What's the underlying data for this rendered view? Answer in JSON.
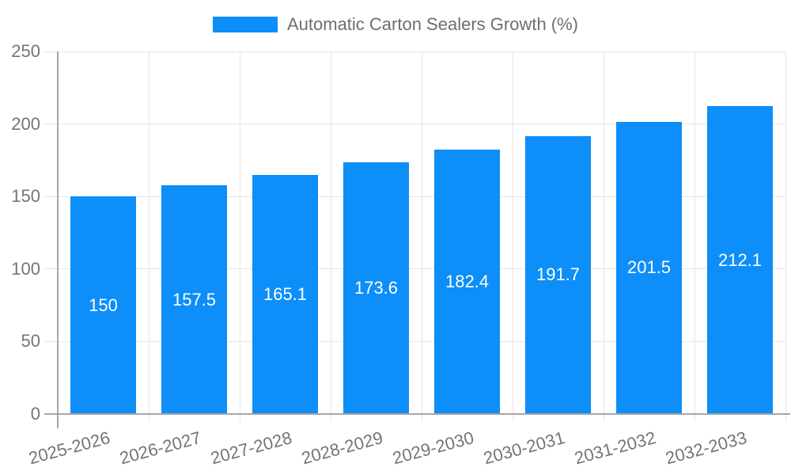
{
  "legend": {
    "label": "Automatic Carton Sealers Growth (%)"
  },
  "chart_data": {
    "type": "bar",
    "title": "Automatic Carton Sealers Growth (%)",
    "categories": [
      "2025-2026",
      "2026-2027",
      "2027-2028",
      "2028-2029",
      "2029-2030",
      "2030-2031",
      "2031-2032",
      "2032-2033"
    ],
    "values": [
      150,
      157.5,
      165.1,
      173.6,
      182.4,
      191.7,
      201.5,
      212.1
    ],
    "value_labels": [
      "150",
      "157.5",
      "165.1",
      "173.6",
      "182.4",
      "191.7",
      "201.5",
      "212.1"
    ],
    "xlabel": "",
    "ylabel": "",
    "ylim": [
      0,
      250
    ],
    "yticks": [
      0,
      50,
      100,
      150,
      200,
      250
    ],
    "grid": true,
    "legend_position": "top"
  },
  "colors": {
    "bar": "#0d8ef8",
    "grid": "#e6e6e6",
    "axis": "#a6a6a6",
    "axis_text": "#757575",
    "legend_text": "#6e6e6e",
    "value_text": "#ffffff",
    "background": "#ffffff"
  }
}
